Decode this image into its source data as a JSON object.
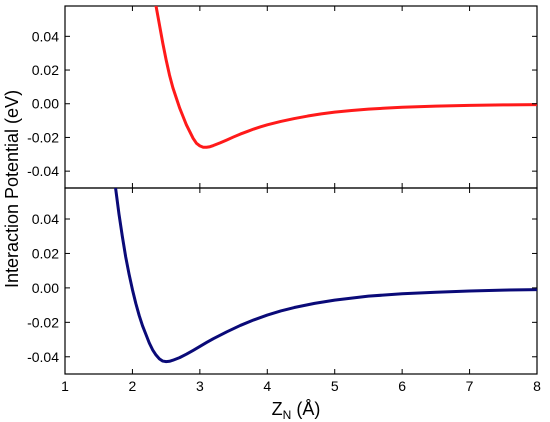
{
  "chart_data": {
    "type": "line",
    "ylabel": "Interaction Potential (eV)",
    "xlabel": {
      "main": "Z",
      "subscript": "N",
      "unit": " (Å)"
    },
    "xlim": [
      1,
      8
    ],
    "xticks": [
      1,
      2,
      3,
      4,
      5,
      6,
      7,
      8
    ],
    "grid": false,
    "legend": "none",
    "panels": [
      {
        "name": "top",
        "ylim": [
          -0.05,
          0.058
        ],
        "yticks": [
          -0.04,
          -0.02,
          0.0,
          0.02,
          0.04
        ],
        "ytick_labels": [
          "-0.04",
          "-0.02",
          "0.00",
          "0.02",
          "0.04"
        ],
        "series": [
          {
            "color": "#ff1a1a",
            "x": [
              2.35,
              2.4,
              2.45,
              2.5,
              2.55,
              2.6,
              2.65,
              2.7,
              2.75,
              2.8,
              2.85,
              2.9,
              2.95,
              3.0,
              3.05,
              3.1,
              3.15,
              3.2,
              3.3,
              3.4,
              3.5,
              3.6,
              3.7,
              3.8,
              3.9,
              4.0,
              4.2,
              4.4,
              4.6,
              4.8,
              5.0,
              5.25,
              5.5,
              5.75,
              6.0,
              6.5,
              7.0,
              7.5,
              8.0
            ],
            "y": [
              0.058,
              0.047,
              0.036,
              0.026,
              0.017,
              0.0095,
              0.0035,
              -0.0025,
              -0.0075,
              -0.0125,
              -0.0165,
              -0.0205,
              -0.0235,
              -0.025,
              -0.0258,
              -0.0258,
              -0.0255,
              -0.0248,
              -0.0232,
              -0.0215,
              -0.0197,
              -0.018,
              -0.0165,
              -0.015,
              -0.0137,
              -0.0125,
              -0.0105,
              -0.0088,
              -0.0073,
              -0.006,
              -0.005,
              -0.004,
              -0.0032,
              -0.0026,
              -0.0021,
              -0.0014,
              -0.001,
              -0.0007,
              -0.0005
            ]
          }
        ]
      },
      {
        "name": "bottom",
        "ylim": [
          -0.05,
          0.058
        ],
        "yticks": [
          -0.04,
          -0.02,
          0.0,
          0.02,
          0.04
        ],
        "ytick_labels": [
          "-0.04",
          "-0.02",
          "0.00",
          "0.02",
          "0.04"
        ],
        "series": [
          {
            "color": "#0a0a78",
            "x": [
              1.75,
              1.8,
              1.85,
              1.9,
              1.95,
              2.0,
              2.05,
              2.1,
              2.15,
              2.2,
              2.25,
              2.3,
              2.35,
              2.4,
              2.45,
              2.5,
              2.55,
              2.6,
              2.7,
              2.8,
              2.9,
              3.0,
              3.1,
              3.2,
              3.4,
              3.6,
              3.8,
              4.0,
              4.2,
              4.4,
              4.7,
              5.0,
              5.5,
              6.0,
              6.5,
              7.0,
              7.5,
              8.0
            ],
            "y": [
              0.058,
              0.043,
              0.03,
              0.018,
              0.008,
              -0.001,
              -0.009,
              -0.016,
              -0.022,
              -0.027,
              -0.032,
              -0.036,
              -0.039,
              -0.0412,
              -0.0425,
              -0.0428,
              -0.0426,
              -0.042,
              -0.0405,
              -0.0385,
              -0.0363,
              -0.034,
              -0.0317,
              -0.0295,
              -0.0255,
              -0.0218,
              -0.0186,
              -0.0158,
              -0.0134,
              -0.0114,
              -0.009,
              -0.0071,
              -0.0048,
              -0.0034,
              -0.0025,
              -0.0018,
              -0.0013,
              -0.001
            ]
          }
        ]
      }
    ]
  }
}
